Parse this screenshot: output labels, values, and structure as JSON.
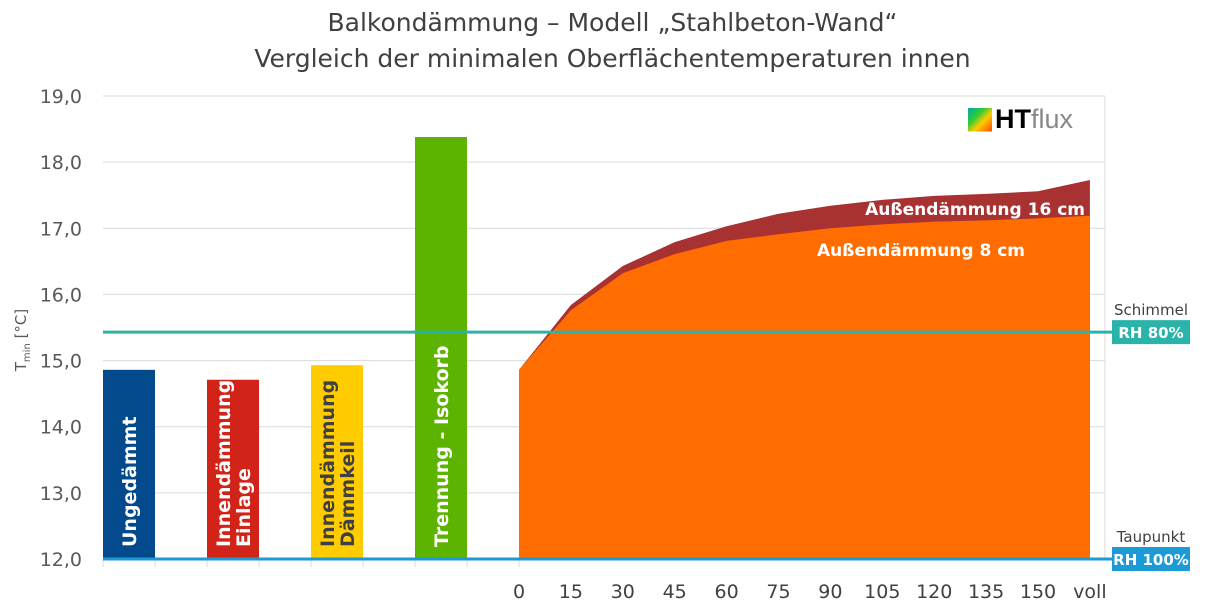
{
  "chart_data": {
    "type": "bar+area",
    "title": "Balkondämmung – Modell „Stahlbeton-Wand“",
    "subtitle": "Vergleich der minimalen Oberflächentemperaturen innen",
    "ylabel_main": "T",
    "ylabel_sub": "min",
    "ylabel_unit": "[°C]",
    "ylim": [
      12,
      19
    ],
    "yticks": [
      "12,0",
      "13,0",
      "14,0",
      "15,0",
      "16,0",
      "17,0",
      "18,0",
      "19,0"
    ],
    "bars": [
      {
        "label": "Ungedämmt",
        "value": 14.86,
        "color": "#034a8c"
      },
      {
        "label": "Innendämmung Einlage",
        "value": 14.71,
        "color": "#d22318"
      },
      {
        "label": "Innendämmung Dämmkeil",
        "value": 14.93,
        "color": "#ffcc00"
      },
      {
        "label": "Trennung - Isokorb",
        "value": 18.38,
        "color": "#5cb300"
      }
    ],
    "x": [
      "0",
      "15",
      "30",
      "45",
      "60",
      "75",
      "90",
      "105",
      "120",
      "135",
      "150",
      "voll"
    ],
    "series": [
      {
        "name": "Außendämmung 16 cm",
        "color": "#a83232",
        "values": [
          14.86,
          15.84,
          16.43,
          16.79,
          17.03,
          17.22,
          17.34,
          17.43,
          17.49,
          17.52,
          17.56,
          17.73
        ]
      },
      {
        "name": "Außendämmung 8 cm",
        "color": "#ff6d00",
        "values": [
          14.86,
          15.76,
          16.32,
          16.61,
          16.81,
          16.91,
          17.0,
          17.06,
          17.1,
          17.12,
          17.15,
          17.19
        ]
      }
    ],
    "reference_lines": [
      {
        "label": "Schimmel",
        "badge": "RH 80%",
        "value": 15.43,
        "color": "#2ab3a8"
      },
      {
        "label": "Taupunkt",
        "badge": "RH 100%",
        "value": 12.0,
        "color": "#1b9ad6"
      }
    ]
  },
  "logo": {
    "ht": "HT",
    "flux": "flux"
  }
}
